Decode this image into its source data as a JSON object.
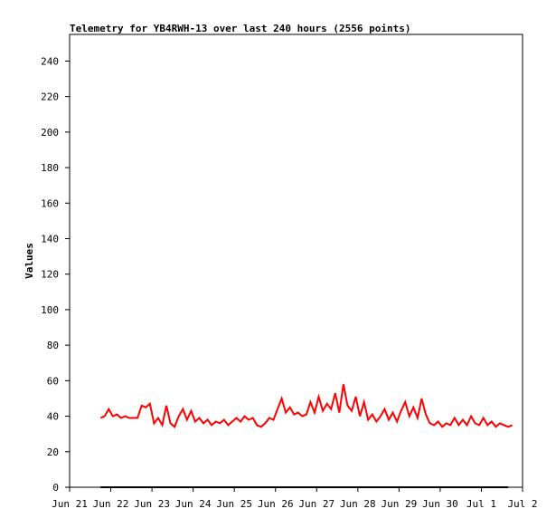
{
  "chart_data": {
    "type": "line",
    "title": "Telemetry for YB4RWH-13 over last 240 hours (2556 points)",
    "y_label": "Values",
    "xlim": [
      0,
      11
    ],
    "xticks": [
      {
        "value": 0,
        "label": "Jun 21"
      },
      {
        "value": 1,
        "label": "Jun 22"
      },
      {
        "value": 2,
        "label": "Jun 23"
      },
      {
        "value": 3,
        "label": "Jun 24"
      },
      {
        "value": 4,
        "label": "Jun 25"
      },
      {
        "value": 5,
        "label": "Jun 26"
      },
      {
        "value": 6,
        "label": "Jun 27"
      },
      {
        "value": 7,
        "label": "Jun 28"
      },
      {
        "value": 8,
        "label": "Jun 29"
      },
      {
        "value": 9,
        "label": "Jun 30"
      },
      {
        "value": 10,
        "label": "Jul 1"
      },
      {
        "value": 11,
        "label": "Jul 2"
      }
    ],
    "ylim": [
      0,
      255
    ],
    "yticks": [
      0,
      20,
      40,
      60,
      80,
      100,
      120,
      140,
      160,
      180,
      200,
      220,
      240
    ],
    "series": [
      {
        "color": "#ff0000",
        "x": [
          0.75,
          0.85,
          0.95,
          1.05,
          1.15,
          1.25,
          1.35,
          1.45,
          1.55,
          1.65,
          1.75,
          1.85,
          1.95,
          2.05,
          2.15,
          2.25,
          2.35,
          2.45,
          2.55,
          2.65,
          2.75,
          2.85,
          2.95,
          3.05,
          3.15,
          3.25,
          3.35,
          3.45,
          3.55,
          3.65,
          3.75,
          3.85,
          3.95,
          4.05,
          4.15,
          4.25,
          4.35,
          4.45,
          4.55,
          4.65,
          4.75,
          4.85,
          4.95,
          5.05,
          5.15,
          5.25,
          5.35,
          5.45,
          5.55,
          5.65,
          5.75,
          5.85,
          5.95,
          6.05,
          6.15,
          6.25,
          6.35,
          6.45,
          6.55,
          6.65,
          6.75,
          6.85,
          6.95,
          7.05,
          7.15,
          7.25,
          7.35,
          7.45,
          7.55,
          7.65,
          7.75,
          7.85,
          7.95,
          8.05,
          8.15,
          8.25,
          8.35,
          8.45,
          8.55,
          8.65,
          8.75,
          8.85,
          8.95,
          9.05,
          9.15,
          9.25,
          9.35,
          9.45,
          9.55,
          9.65,
          9.75,
          9.85,
          9.95,
          10.05,
          10.15,
          10.25,
          10.35,
          10.45,
          10.55,
          10.65,
          10.75
        ],
        "values": [
          39,
          40,
          44,
          40,
          41,
          39,
          40,
          39,
          39,
          39,
          46,
          45,
          47,
          36,
          39,
          35,
          46,
          36,
          34,
          40,
          44,
          38,
          43,
          37,
          39,
          36,
          38,
          35,
          37,
          36,
          38,
          35,
          37,
          39,
          37,
          40,
          38,
          39,
          35,
          34,
          36,
          39,
          38,
          44,
          50,
          42,
          45,
          41,
          42,
          40,
          41,
          48,
          42,
          51,
          43,
          47,
          44,
          53,
          42,
          58,
          46,
          43,
          51,
          40,
          48,
          38,
          41,
          37,
          40,
          44,
          38,
          42,
          37,
          43,
          48,
          40,
          45,
          39,
          50,
          41,
          36,
          35,
          37,
          34,
          36,
          35,
          39,
          35,
          38,
          35,
          40,
          36,
          35,
          39,
          35,
          37,
          34,
          36,
          35,
          34,
          35
        ]
      },
      {
        "color": "#000000",
        "x": [
          0.75,
          10.65
        ],
        "values": [
          0,
          0
        ]
      }
    ]
  }
}
